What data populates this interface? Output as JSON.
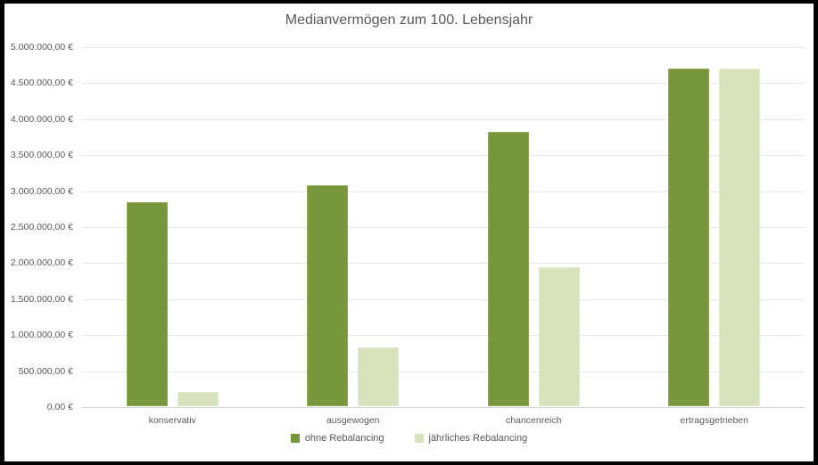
{
  "title": "Medianvermögen zum 100. Lebensjahr",
  "colors": {
    "series1": "#78963B",
    "series2": "#D7E3BC",
    "text": "#595959",
    "gridline": "#E8E8E8",
    "axis_line": "#D0D0D0",
    "frame": "#000000",
    "background": "#FFFFFF"
  },
  "chart_data": {
    "type": "bar",
    "title": "Medianvermögen zum 100. Lebensjahr",
    "categories": [
      "konservativ",
      "ausgewogen",
      "chancenreich",
      "ertragsgetrieben"
    ],
    "series": [
      {
        "name": "ohne Rebalancing",
        "color": "#78963B",
        "values": [
          2830000,
          3070000,
          3810000,
          4690000
        ]
      },
      {
        "name": "jährliches Rebalancing",
        "color": "#D7E3BC",
        "values": [
          200000,
          820000,
          1930000,
          4690000
        ]
      }
    ],
    "xlabel": "",
    "ylabel": "",
    "ylim": [
      0,
      5000000
    ],
    "ytick_step": 500000,
    "ytick_labels": [
      "0,00 €",
      "500.000,00 €",
      "1.000.000,00 €",
      "1.500.000,00 €",
      "2.000.000,00 €",
      "2.500.000,00 €",
      "3.000.000,00 €",
      "3.500.000,00 €",
      "4.000.000,00 €",
      "4.500.000,00 €",
      "5.000.000,00 €"
    ],
    "grid": true,
    "legend_position": "bottom"
  }
}
